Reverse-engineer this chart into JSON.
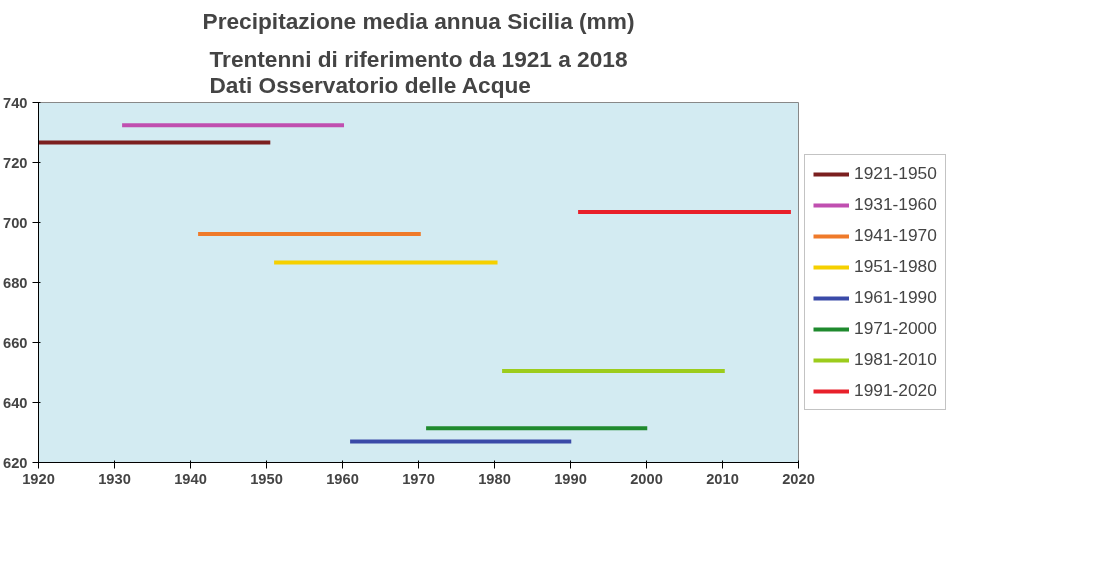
{
  "chart_data": {
    "type": "line",
    "title": "Precipitazione media annua Sicilia (mm)",
    "subtitle": "Trentenni di riferimento da 1921 a 2018\nDati Osservatorio delle Acque",
    "xlim": [
      1920,
      2020
    ],
    "xticks": [
      1920,
      1930,
      1940,
      1950,
      1960,
      1970,
      1980,
      1990,
      2000,
      2010,
      2020
    ],
    "ylim": [
      620,
      740
    ],
    "yticks": [
      620,
      640,
      660,
      680,
      700,
      720,
      740
    ],
    "grid": false,
    "legend": "right",
    "marker": "none",
    "line_style": "solid",
    "series": [
      {
        "name": "1921-1950",
        "color": "#7b1f1f",
        "x": [
          1920,
          1950.5
        ],
        "values": [
          726.7,
          726.7
        ]
      },
      {
        "name": "1931-1960",
        "color": "#c04fb0",
        "x": [
          1931,
          1960.2
        ],
        "values": [
          732.4,
          732.4
        ]
      },
      {
        "name": "1941-1970",
        "color": "#ef7a2a",
        "x": [
          1941,
          1970.3
        ],
        "values": [
          696.2,
          696.2
        ]
      },
      {
        "name": "1951-1980",
        "color": "#f5d000",
        "x": [
          1951,
          1980.4
        ],
        "values": [
          686.7,
          686.7
        ]
      },
      {
        "name": "1961-1990",
        "color": "#3a4aa8",
        "x": [
          1961,
          1990.1
        ],
        "values": [
          627,
          627
        ]
      },
      {
        "name": "1971-2000",
        "color": "#1f8a2e",
        "x": [
          1971,
          2000.1
        ],
        "values": [
          631.4,
          631.4
        ]
      },
      {
        "name": "1981-2010",
        "color": "#9ccc1c",
        "x": [
          1981,
          2010.3
        ],
        "values": [
          650.5,
          650.5
        ]
      },
      {
        "name": "1991-2020",
        "color": "#e8202a",
        "x": [
          1991,
          2019
        ],
        "values": [
          703.5,
          703.5
        ]
      }
    ]
  }
}
